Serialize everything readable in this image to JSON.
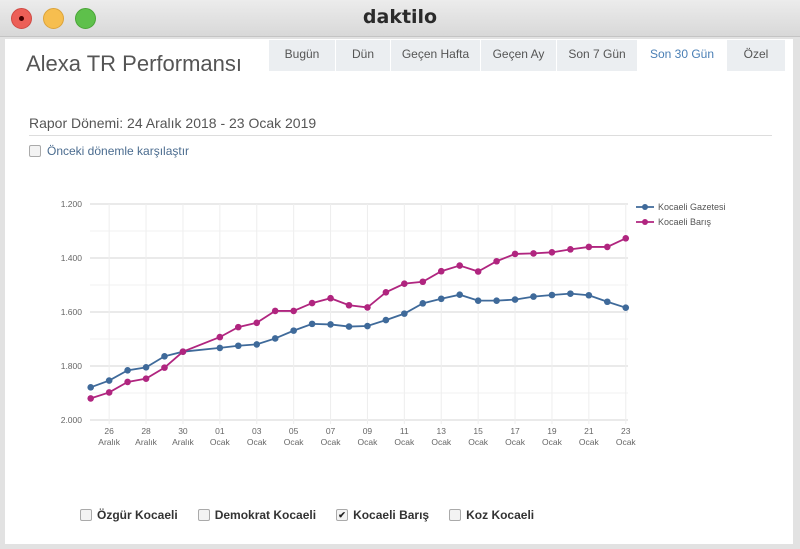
{
  "window": {
    "title": "daktilo"
  },
  "header": {
    "title": "Alexa TR Performansı",
    "tabs": [
      {
        "label": "Bugün",
        "active": false
      },
      {
        "label": "Dün",
        "active": false
      },
      {
        "label": "Geçen Hafta",
        "active": false
      },
      {
        "label": "Geçen Ay",
        "active": false
      },
      {
        "label": "Son 7 Gün",
        "active": false
      },
      {
        "label": "Son 30 Gün",
        "active": true
      },
      {
        "label": "Özel",
        "active": false
      }
    ]
  },
  "report": {
    "period": "Rapor Dönemi: 24 Aralık 2018 - 23 Ocak 2019",
    "compare_label": "Önceki dönemle karşılaştır",
    "compare_checked": false
  },
  "sites": [
    {
      "label": "Özgür Kocaeli",
      "checked": false
    },
    {
      "label": "Demokrat Kocaeli",
      "checked": false
    },
    {
      "label": "Kocaeli Barış",
      "checked": true
    },
    {
      "label": "Koz Kocaeli",
      "checked": false
    }
  ],
  "colors": {
    "gazetesi": "#3f6a9a",
    "baris": "#b0257f"
  },
  "chart_data": {
    "type": "line",
    "y_reversed": true,
    "ylim": [
      1200,
      2000
    ],
    "yticks": [
      "1.200",
      "1.400",
      "1.600",
      "1.800",
      "2.000"
    ],
    "grid": true,
    "legend": "top-right",
    "x": [
      "25 Aralık",
      "26 Aralık",
      "27 Aralık",
      "28 Aralık",
      "29 Aralık",
      "30 Aralık",
      "31 Aralık",
      "01 Ocak",
      "02 Ocak",
      "03 Ocak",
      "04 Ocak",
      "05 Ocak",
      "06 Ocak",
      "07 Ocak",
      "08 Ocak",
      "09 Ocak",
      "10 Ocak",
      "11 Ocak",
      "12 Ocak",
      "13 Ocak",
      "14 Ocak",
      "15 Ocak",
      "16 Ocak",
      "17 Ocak",
      "18 Ocak",
      "19 Ocak",
      "20 Ocak",
      "21 Ocak",
      "22 Ocak",
      "23 Ocak"
    ],
    "xtick_labels": [
      [
        "26",
        "Aralık"
      ],
      [
        "28",
        "Aralık"
      ],
      [
        "30",
        "Aralık"
      ],
      [
        "01",
        "Ocak"
      ],
      [
        "03",
        "Ocak"
      ],
      [
        "05",
        "Ocak"
      ],
      [
        "07",
        "Ocak"
      ],
      [
        "09",
        "Ocak"
      ],
      [
        "11",
        "Ocak"
      ],
      [
        "13",
        "Ocak"
      ],
      [
        "15",
        "Ocak"
      ],
      [
        "17",
        "Ocak"
      ],
      [
        "19",
        "Ocak"
      ],
      [
        "21",
        "Ocak"
      ],
      [
        "23",
        "Ocak"
      ]
    ],
    "series": [
      {
        "name": "Kocaeli Gazetesi",
        "values": [
          1879,
          1854,
          1816,
          1805,
          1764,
          1747,
          null,
          1733,
          1725,
          1720,
          1698,
          1669,
          1644,
          1646,
          1654,
          1652,
          1630,
          1606,
          1568,
          1551,
          1536,
          1558,
          1558,
          1554,
          1543,
          1537,
          1532,
          1538,
          1562,
          1584
        ]
      },
      {
        "name": "Kocaeli Barış",
        "values": [
          1920,
          1898,
          1859,
          1847,
          1806,
          1747,
          null,
          1693,
          1656,
          1640,
          1596,
          1596,
          1567,
          1549,
          1575,
          1583,
          1527,
          1495,
          1488,
          1449,
          1428,
          1450,
          1412,
          1385,
          1383,
          1379,
          1368,
          1359,
          1359,
          1327
        ]
      }
    ]
  }
}
